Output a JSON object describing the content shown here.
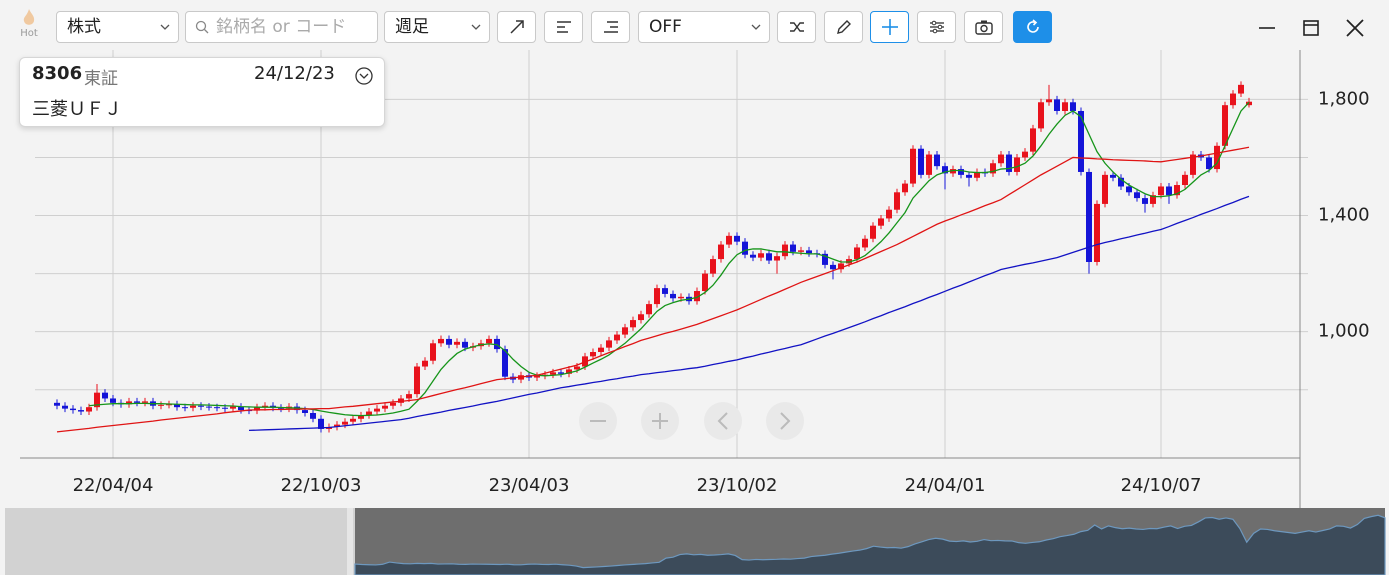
{
  "toolbar": {
    "hot": "Hot",
    "market": "株式",
    "search_placeholder": "銘柄名 or コード",
    "period": "週足",
    "indicator": "OFF"
  },
  "tooltip": {
    "code": "8306",
    "exchange": "東証",
    "date": "24/12/23",
    "name": "三菱ＵＦＪ"
  },
  "chart_data": {
    "type": "candlestick",
    "up_color": "#e8121c",
    "down_color": "#1414d8",
    "ylim": [
      565,
      1970
    ],
    "yticks": [
      {
        "value": 1000,
        "label": "1,000"
      },
      {
        "value": 1400,
        "label": "1,400"
      },
      {
        "value": 1800,
        "label": "1,800"
      }
    ],
    "minor_yticks": [
      800,
      1200,
      1600
    ],
    "grid": true,
    "categories": [
      null,
      null,
      null,
      null,
      null,
      null,
      null,
      "22/04/04",
      null,
      null,
      null,
      null,
      null,
      null,
      null,
      null,
      null,
      null,
      null,
      null,
      null,
      null,
      null,
      null,
      null,
      null,
      null,
      null,
      null,
      null,
      null,
      null,
      null,
      "22/10/03",
      null,
      null,
      null,
      null,
      null,
      null,
      null,
      null,
      null,
      null,
      null,
      null,
      null,
      null,
      null,
      null,
      null,
      null,
      null,
      null,
      null,
      null,
      null,
      null,
      null,
      "23/04/03",
      null,
      null,
      null,
      null,
      null,
      null,
      null,
      null,
      null,
      null,
      null,
      null,
      null,
      null,
      null,
      null,
      null,
      null,
      null,
      null,
      null,
      null,
      null,
      null,
      null,
      "23/10/02",
      null,
      null,
      null,
      null,
      null,
      null,
      null,
      null,
      null,
      null,
      null,
      null,
      null,
      null,
      null,
      null,
      null,
      null,
      null,
      null,
      null,
      null,
      null,
      null,
      null,
      "24/04/01",
      null,
      null,
      null,
      null,
      null,
      null,
      null,
      null,
      null,
      null,
      null,
      null,
      null,
      null,
      null,
      null,
      null,
      null,
      null,
      null,
      null,
      null,
      null,
      null,
      null,
      null,
      "24/10/07",
      null,
      null,
      null,
      null,
      null,
      null,
      null,
      null,
      null,
      null,
      null
    ],
    "open": [
      755,
      745,
      735,
      730,
      725,
      740,
      790,
      770,
      755,
      750,
      760,
      755,
      760,
      745,
      748,
      750,
      740,
      738,
      745,
      742,
      740,
      738,
      735,
      742,
      730,
      728,
      740,
      745,
      738,
      735,
      742,
      730,
      720,
      700,
      665,
      672,
      680,
      690,
      700,
      712,
      725,
      735,
      745,
      755,
      770,
      785,
      880,
      900,
      960,
      975,
      955,
      965,
      945,
      950,
      960,
      975,
      940,
      845,
      835,
      850,
      842,
      848,
      852,
      860,
      855,
      870,
      880,
      915,
      930,
      945,
      970,
      990,
      1015,
      1040,
      1060,
      1095,
      1150,
      1130,
      1115,
      1120,
      1105,
      1140,
      1200,
      1250,
      1300,
      1330,
      1310,
      1265,
      1255,
      1270,
      1245,
      1260,
      1300,
      1275,
      1280,
      1270,
      1268,
      1230,
      1215,
      1235,
      1250,
      1290,
      1320,
      1365,
      1390,
      1420,
      1480,
      1510,
      1630,
      1540,
      1610,
      1570,
      1545,
      1560,
      1540,
      1530,
      1550,
      1545,
      1580,
      1610,
      1550,
      1600,
      1620,
      1700,
      1790,
      1800,
      1760,
      1790,
      1760,
      1550,
      1240,
      1440,
      1540,
      1530,
      1500,
      1480,
      1460,
      1440,
      1470,
      1500,
      1470,
      1505,
      1540,
      1610,
      1600,
      1560,
      1640,
      1780,
      1820,
      1780
    ],
    "high": [
      767,
      757,
      747,
      742,
      752,
      820,
      802,
      782,
      767,
      772,
      772,
      772,
      772,
      760,
      762,
      762,
      752,
      757,
      757,
      754,
      752,
      750,
      754,
      754,
      742,
      752,
      757,
      757,
      750,
      754,
      754,
      742,
      732,
      712,
      684,
      692,
      702,
      712,
      724,
      737,
      747,
      757,
      767,
      782,
      797,
      892,
      912,
      972,
      987,
      987,
      977,
      977,
      962,
      972,
      987,
      987,
      952,
      857,
      862,
      862,
      860,
      864,
      872,
      872,
      882,
      892,
      927,
      942,
      957,
      982,
      1002,
      1027,
      1052,
      1072,
      1107,
      1162,
      1162,
      1142,
      1132,
      1132,
      1152,
      1212,
      1262,
      1312,
      1342,
      1342,
      1322,
      1277,
      1282,
      1282,
      1272,
      1312,
      1312,
      1292,
      1292,
      1282,
      1280,
      1242,
      1247,
      1262,
      1302,
      1332,
      1377,
      1402,
      1432,
      1492,
      1522,
      1642,
      1642,
      1622,
      1622,
      1582,
      1572,
      1572,
      1552,
      1562,
      1562,
      1592,
      1622,
      1622,
      1612,
      1632,
      1712,
      1802,
      1850,
      1812,
      1802,
      1802,
      1772,
      1562,
      1452,
      1552,
      1552,
      1542,
      1512,
      1492,
      1472,
      1482,
      1512,
      1512,
      1517,
      1552,
      1622,
      1622,
      1612,
      1652,
      1792,
      1832,
      1862,
      1805
    ],
    "low": [
      733,
      723,
      718,
      713,
      713,
      728,
      758,
      743,
      738,
      738,
      743,
      743,
      733,
      733,
      736,
      728,
      726,
      726,
      730,
      728,
      726,
      723,
      723,
      718,
      716,
      716,
      728,
      726,
      723,
      723,
      718,
      708,
      688,
      653,
      653,
      660,
      668,
      678,
      688,
      700,
      713,
      723,
      733,
      743,
      758,
      773,
      868,
      888,
      948,
      943,
      943,
      933,
      933,
      938,
      948,
      928,
      833,
      823,
      823,
      830,
      830,
      836,
      840,
      843,
      843,
      858,
      868,
      903,
      918,
      933,
      958,
      978,
      1003,
      1028,
      1048,
      1083,
      1118,
      1103,
      1103,
      1093,
      1093,
      1128,
      1188,
      1238,
      1288,
      1298,
      1253,
      1243,
      1243,
      1233,
      1200,
      1248,
      1263,
      1263,
      1258,
      1256,
      1218,
      1180,
      1203,
      1223,
      1238,
      1278,
      1308,
      1353,
      1378,
      1408,
      1468,
      1498,
      1528,
      1528,
      1558,
      1490,
      1533,
      1528,
      1500,
      1518,
      1533,
      1533,
      1568,
      1538,
      1538,
      1588,
      1608,
      1688,
      1778,
      1748,
      1748,
      1748,
      1538,
      1200,
      1228,
      1428,
      1518,
      1488,
      1468,
      1448,
      1410,
      1428,
      1458,
      1440,
      1458,
      1493,
      1528,
      1588,
      1548,
      1548,
      1628,
      1768,
      1808,
      1772
    ],
    "close": [
      745,
      735,
      730,
      725,
      740,
      790,
      770,
      755,
      750,
      760,
      755,
      760,
      745,
      748,
      750,
      740,
      738,
      745,
      742,
      740,
      738,
      735,
      742,
      730,
      728,
      740,
      745,
      738,
      735,
      742,
      730,
      720,
      700,
      665,
      672,
      680,
      690,
      700,
      712,
      725,
      735,
      745,
      755,
      770,
      785,
      880,
      900,
      960,
      975,
      955,
      965,
      945,
      950,
      960,
      975,
      940,
      845,
      835,
      850,
      842,
      848,
      852,
      860,
      855,
      870,
      880,
      915,
      930,
      945,
      970,
      990,
      1015,
      1040,
      1060,
      1095,
      1150,
      1130,
      1115,
      1120,
      1105,
      1140,
      1200,
      1250,
      1300,
      1330,
      1310,
      1265,
      1255,
      1270,
      1245,
      1260,
      1300,
      1275,
      1280,
      1270,
      1268,
      1230,
      1215,
      1235,
      1250,
      1290,
      1320,
      1365,
      1390,
      1420,
      1480,
      1510,
      1630,
      1540,
      1610,
      1570,
      1545,
      1560,
      1540,
      1530,
      1550,
      1545,
      1580,
      1610,
      1550,
      1600,
      1620,
      1700,
      1790,
      1800,
      1760,
      1790,
      1760,
      1550,
      1240,
      1440,
      1540,
      1530,
      1500,
      1480,
      1460,
      1440,
      1470,
      1500,
      1470,
      1505,
      1540,
      1610,
      1600,
      1560,
      1640,
      1780,
      1820,
      1850,
      1792
    ],
    "lines": [
      {
        "color": "#16951a",
        "values": [
          null,
          null,
          null,
          null,
          745,
          748,
          750,
          752,
          752,
          752,
          753,
          753,
          752,
          752,
          751,
          750,
          749,
          748,
          748,
          747,
          746,
          745,
          744,
          742,
          741,
          740,
          740,
          740,
          739,
          738,
          737,
          735,
          732,
          727,
          722,
          718,
          714,
          712,
          711,
          712,
          713,
          716,
          720,
          726,
          733,
          760,
          790,
          830,
          870,
          900,
          925,
          940,
          948,
          955,
          958,
          955,
          935,
          905,
          880,
          860,
          850,
          848,
          850,
          852,
          858,
          865,
          878,
          892,
          905,
          920,
          940,
          960,
          985,
          1010,
          1040,
          1070,
          1090,
          1100,
          1108,
          1112,
          1118,
          1135,
          1160,
          1195,
          1235,
          1265,
          1280,
          1285,
          1285,
          1280,
          1275,
          1275,
          1272,
          1270,
          1268,
          1268,
          1260,
          1250,
          1240,
          1240,
          1248,
          1262,
          1285,
          1310,
          1340,
          1375,
          1410,
          1460,
          1490,
          1520,
          1540,
          1550,
          1555,
          1555,
          1550,
          1548,
          1548,
          1552,
          1560,
          1562,
          1568,
          1580,
          1605,
          1640,
          1680,
          1715,
          1745,
          1760,
          1740,
          1680,
          1620,
          1580,
          1550,
          1525,
          1505,
          1490,
          1475,
          1465,
          1465,
          1468,
          1475,
          1490,
          1515,
          1540,
          1555,
          1580,
          1640,
          1700,
          1760,
          1790
        ]
      },
      {
        "color": "#e01414",
        "values": [
          655,
          658,
          661,
          664,
          667,
          671,
          674,
          677,
          680,
          683,
          686,
          689,
          692,
          696,
          699,
          702,
          705,
          708,
          711,
          714,
          717,
          721,
          724,
          727,
          730,
          731,
          731,
          732,
          732,
          733,
          733,
          734,
          734,
          735,
          735,
          738,
          741,
          743,
          746,
          749,
          752,
          755,
          758,
          760,
          763,
          766,
          773,
          780,
          787,
          794,
          801,
          807,
          814,
          821,
          828,
          835,
          838,
          841,
          844,
          847,
          850,
          857,
          864,
          871,
          878,
          885,
          896,
          906,
          917,
          928,
          938,
          949,
          959,
          970,
          978,
          986,
          994,
          1001,
          1009,
          1017,
          1025,
          1035,
          1045,
          1055,
          1065,
          1075,
          1087,
          1099,
          1111,
          1123,
          1134,
          1146,
          1158,
          1170,
          1180,
          1190,
          1200,
          1210,
          1220,
          1230,
          1240,
          1252,
          1264,
          1276,
          1288,
          1300,
          1314,
          1328,
          1342,
          1356,
          1370,
          1381,
          1391,
          1402,
          1412,
          1423,
          1434,
          1444,
          1455,
          1472,
          1489,
          1506,
          1523,
          1540,
          1555,
          1570,
          1585,
          1600,
          1598,
          1597,
          1595,
          1594,
          1592,
          1591,
          1590,
          1589,
          1588,
          1586,
          1585,
          1589,
          1593,
          1597,
          1601,
          1605,
          1610,
          1615,
          1620,
          1625,
          1630,
          1635
        ]
      },
      {
        "color": "#1212c4",
        "values": [
          null,
          null,
          null,
          null,
          null,
          null,
          null,
          null,
          null,
          null,
          null,
          null,
          null,
          null,
          null,
          null,
          null,
          null,
          null,
          null,
          null,
          null,
          null,
          null,
          660,
          661,
          662,
          663,
          664,
          665,
          666,
          667,
          668,
          669,
          670,
          673,
          676,
          679,
          682,
          685,
          688,
          691,
          694,
          697,
          702,
          708,
          713,
          718,
          723,
          729,
          734,
          739,
          744,
          750,
          755,
          760,
          766,
          772,
          778,
          784,
          789,
          795,
          801,
          807,
          811,
          816,
          820,
          825,
          829,
          834,
          838,
          843,
          847,
          852,
          855,
          859,
          862,
          866,
          869,
          873,
          876,
          881,
          887,
          892,
          898,
          903,
          910,
          916,
          923,
          929,
          936,
          942,
          949,
          955,
          965,
          975,
          985,
          994,
          1004,
          1014,
          1024,
          1034,
          1045,
          1055,
          1066,
          1076,
          1086,
          1097,
          1107,
          1118,
          1128,
          1139,
          1150,
          1160,
          1171,
          1182,
          1193,
          1203,
          1214,
          1220,
          1226,
          1232,
          1237,
          1243,
          1249,
          1255,
          1264,
          1273,
          1282,
          1291,
          1300,
          1307,
          1313,
          1320,
          1326,
          1333,
          1339,
          1346,
          1352,
          1362,
          1373,
          1383,
          1393,
          1404,
          1414,
          1424,
          1435,
          1445,
          1456,
          1466
        ]
      }
    ]
  }
}
